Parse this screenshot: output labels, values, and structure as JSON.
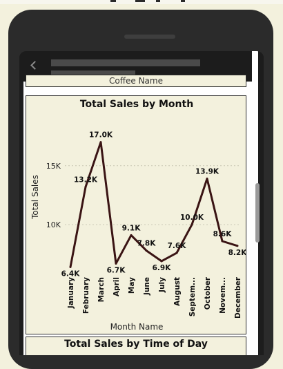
{
  "report": {
    "previous_visual_label": "Coffee Name",
    "next_visual_title": "Total Sales by Time  of  Day"
  },
  "chart_data": {
    "type": "line",
    "title": "Total Sales by Month",
    "xlabel": "Month Name",
    "ylabel": "Total Sales",
    "categories": [
      "January",
      "February",
      "March",
      "April",
      "May",
      "June",
      "July",
      "August",
      "Septem...",
      "October",
      "Novem...",
      "December"
    ],
    "series": [
      {
        "values": [
          6400,
          13200,
          17000,
          6700,
          9100,
          7800,
          6900,
          7600,
          10000,
          13900,
          8600,
          8200
        ],
        "data_labels": [
          "6.4K",
          "13.2K",
          "17.0K",
          "6.7K",
          "9.1K",
          "7.8K",
          "6.9K",
          "7.6K",
          "10.0K",
          "13.9K",
          "8.6K",
          "8.2K"
        ],
        "color": "#3a1414"
      }
    ],
    "y_ticks": [
      {
        "value": 10000,
        "label": "10K"
      },
      {
        "value": 15000,
        "label": "15K"
      }
    ],
    "ylim": [
      5900,
      18800
    ],
    "grid": true,
    "legend": "none"
  }
}
